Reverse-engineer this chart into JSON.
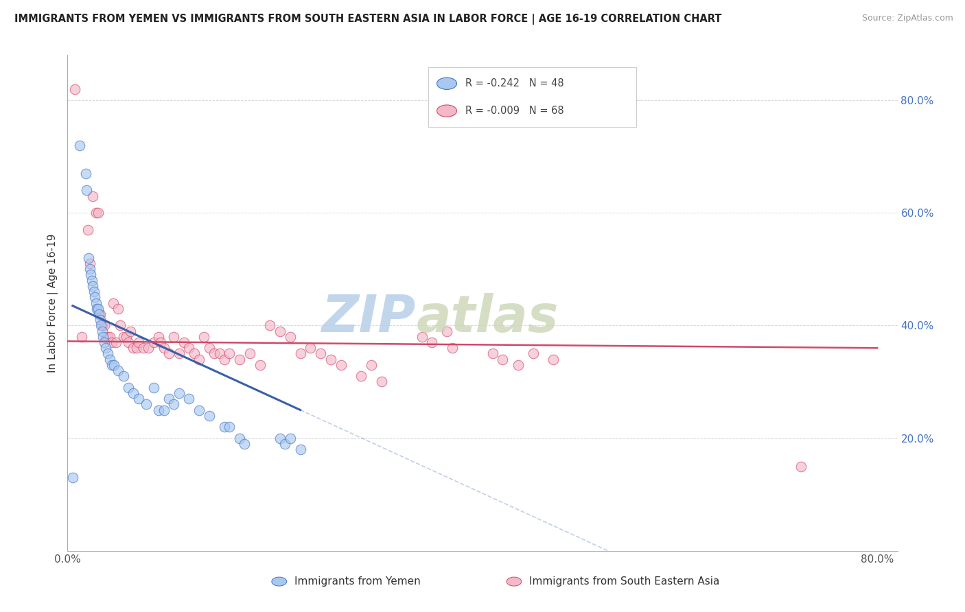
{
  "title": "IMMIGRANTS FROM YEMEN VS IMMIGRANTS FROM SOUTH EASTERN ASIA IN LABOR FORCE | AGE 16-19 CORRELATION CHART",
  "source": "Source: ZipAtlas.com",
  "ylabel": "In Labor Force | Age 16-19",
  "xlim": [
    0.0,
    0.82
  ],
  "ylim": [
    0.0,
    0.88
  ],
  "color_yemen": "#a8c8f0",
  "color_yemen_edge": "#4472c4",
  "color_sea": "#f4b8c8",
  "color_sea_edge": "#d04868",
  "color_yemen_line": "#3a5fa8",
  "color_sea_line": "#d04868",
  "color_grid": "#d8d8d8",
  "yemen_x": [
    0.005,
    0.012,
    0.018,
    0.019,
    0.021,
    0.022,
    0.023,
    0.024,
    0.025,
    0.026,
    0.027,
    0.028,
    0.029,
    0.03,
    0.031,
    0.032,
    0.033,
    0.034,
    0.035,
    0.036,
    0.038,
    0.04,
    0.042,
    0.044,
    0.046,
    0.05,
    0.055,
    0.06,
    0.065,
    0.07,
    0.078,
    0.085,
    0.09,
    0.095,
    0.1,
    0.105,
    0.11,
    0.12,
    0.13,
    0.14,
    0.155,
    0.16,
    0.17,
    0.175,
    0.21,
    0.215,
    0.22,
    0.23
  ],
  "yemen_y": [
    0.13,
    0.72,
    0.67,
    0.64,
    0.52,
    0.5,
    0.49,
    0.48,
    0.47,
    0.46,
    0.45,
    0.44,
    0.43,
    0.43,
    0.42,
    0.41,
    0.4,
    0.39,
    0.38,
    0.37,
    0.36,
    0.35,
    0.34,
    0.33,
    0.33,
    0.32,
    0.31,
    0.29,
    0.28,
    0.27,
    0.26,
    0.29,
    0.25,
    0.25,
    0.27,
    0.26,
    0.28,
    0.27,
    0.25,
    0.24,
    0.22,
    0.22,
    0.2,
    0.19,
    0.2,
    0.19,
    0.2,
    0.18
  ],
  "sea_x": [
    0.007,
    0.014,
    0.02,
    0.022,
    0.025,
    0.028,
    0.03,
    0.032,
    0.034,
    0.036,
    0.038,
    0.04,
    0.042,
    0.044,
    0.045,
    0.048,
    0.05,
    0.052,
    0.055,
    0.058,
    0.06,
    0.062,
    0.065,
    0.068,
    0.07,
    0.075,
    0.08,
    0.085,
    0.09,
    0.092,
    0.095,
    0.1,
    0.105,
    0.11,
    0.115,
    0.12,
    0.125,
    0.13,
    0.135,
    0.14,
    0.145,
    0.15,
    0.155,
    0.16,
    0.17,
    0.18,
    0.19,
    0.2,
    0.21,
    0.22,
    0.23,
    0.24,
    0.25,
    0.26,
    0.27,
    0.29,
    0.3,
    0.31,
    0.35,
    0.36,
    0.375,
    0.38,
    0.42,
    0.43,
    0.445,
    0.46,
    0.48,
    0.725
  ],
  "sea_y": [
    0.82,
    0.38,
    0.57,
    0.51,
    0.63,
    0.6,
    0.6,
    0.42,
    0.4,
    0.4,
    0.38,
    0.38,
    0.38,
    0.37,
    0.44,
    0.37,
    0.43,
    0.4,
    0.38,
    0.38,
    0.37,
    0.39,
    0.36,
    0.36,
    0.37,
    0.36,
    0.36,
    0.37,
    0.38,
    0.37,
    0.36,
    0.35,
    0.38,
    0.35,
    0.37,
    0.36,
    0.35,
    0.34,
    0.38,
    0.36,
    0.35,
    0.35,
    0.34,
    0.35,
    0.34,
    0.35,
    0.33,
    0.4,
    0.39,
    0.38,
    0.35,
    0.36,
    0.35,
    0.34,
    0.33,
    0.31,
    0.33,
    0.3,
    0.38,
    0.37,
    0.39,
    0.36,
    0.35,
    0.34,
    0.33,
    0.35,
    0.34,
    0.15
  ],
  "trend_yemen_x0": 0.005,
  "trend_yemen_x1": 0.23,
  "trend_yemen_y0": 0.435,
  "trend_yemen_y1": 0.25,
  "trend_yemen_dash_x1": 0.8,
  "trend_sea_x0": 0.0,
  "trend_sea_x1": 0.8,
  "trend_sea_y0": 0.372,
  "trend_sea_y1": 0.36
}
